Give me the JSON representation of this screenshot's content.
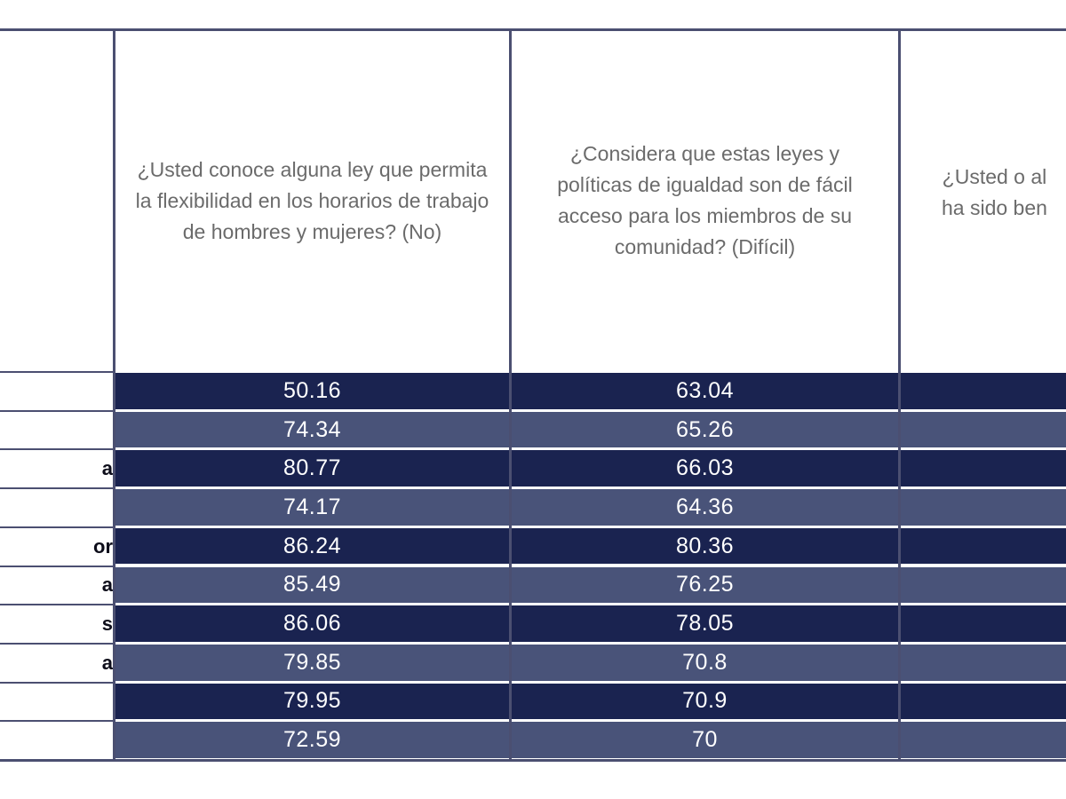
{
  "table": {
    "headers": [
      "¿Usted conoce alguna ley que permita la flexibilidad en los horarios de trabajo de hombres y mujeres? (No)",
      "¿Considera que estas leyes y políticas de igualdad son de fácil acceso para los miembros de su comunidad? (Difícil)",
      "¿Usted o al\nha sido ben"
    ],
    "row_labels": [
      "",
      "",
      "a",
      "",
      "or",
      "a",
      "s",
      "a",
      "",
      ""
    ],
    "col1_values": [
      "50.16",
      "74.34",
      "80.77",
      "74.17",
      "86.24",
      "85.49",
      "86.06",
      "79.85",
      "79.95",
      "72.59"
    ],
    "col2_values": [
      "63.04",
      "65.26",
      "66.03",
      "64.36",
      "80.36",
      "76.25",
      "78.05",
      "70.8",
      "70.9",
      "70"
    ],
    "colors": {
      "dark_row": "#1a2350",
      "light_row": "#495379",
      "rule": "#4b4f71",
      "header_text": "#6b6b6b"
    }
  }
}
